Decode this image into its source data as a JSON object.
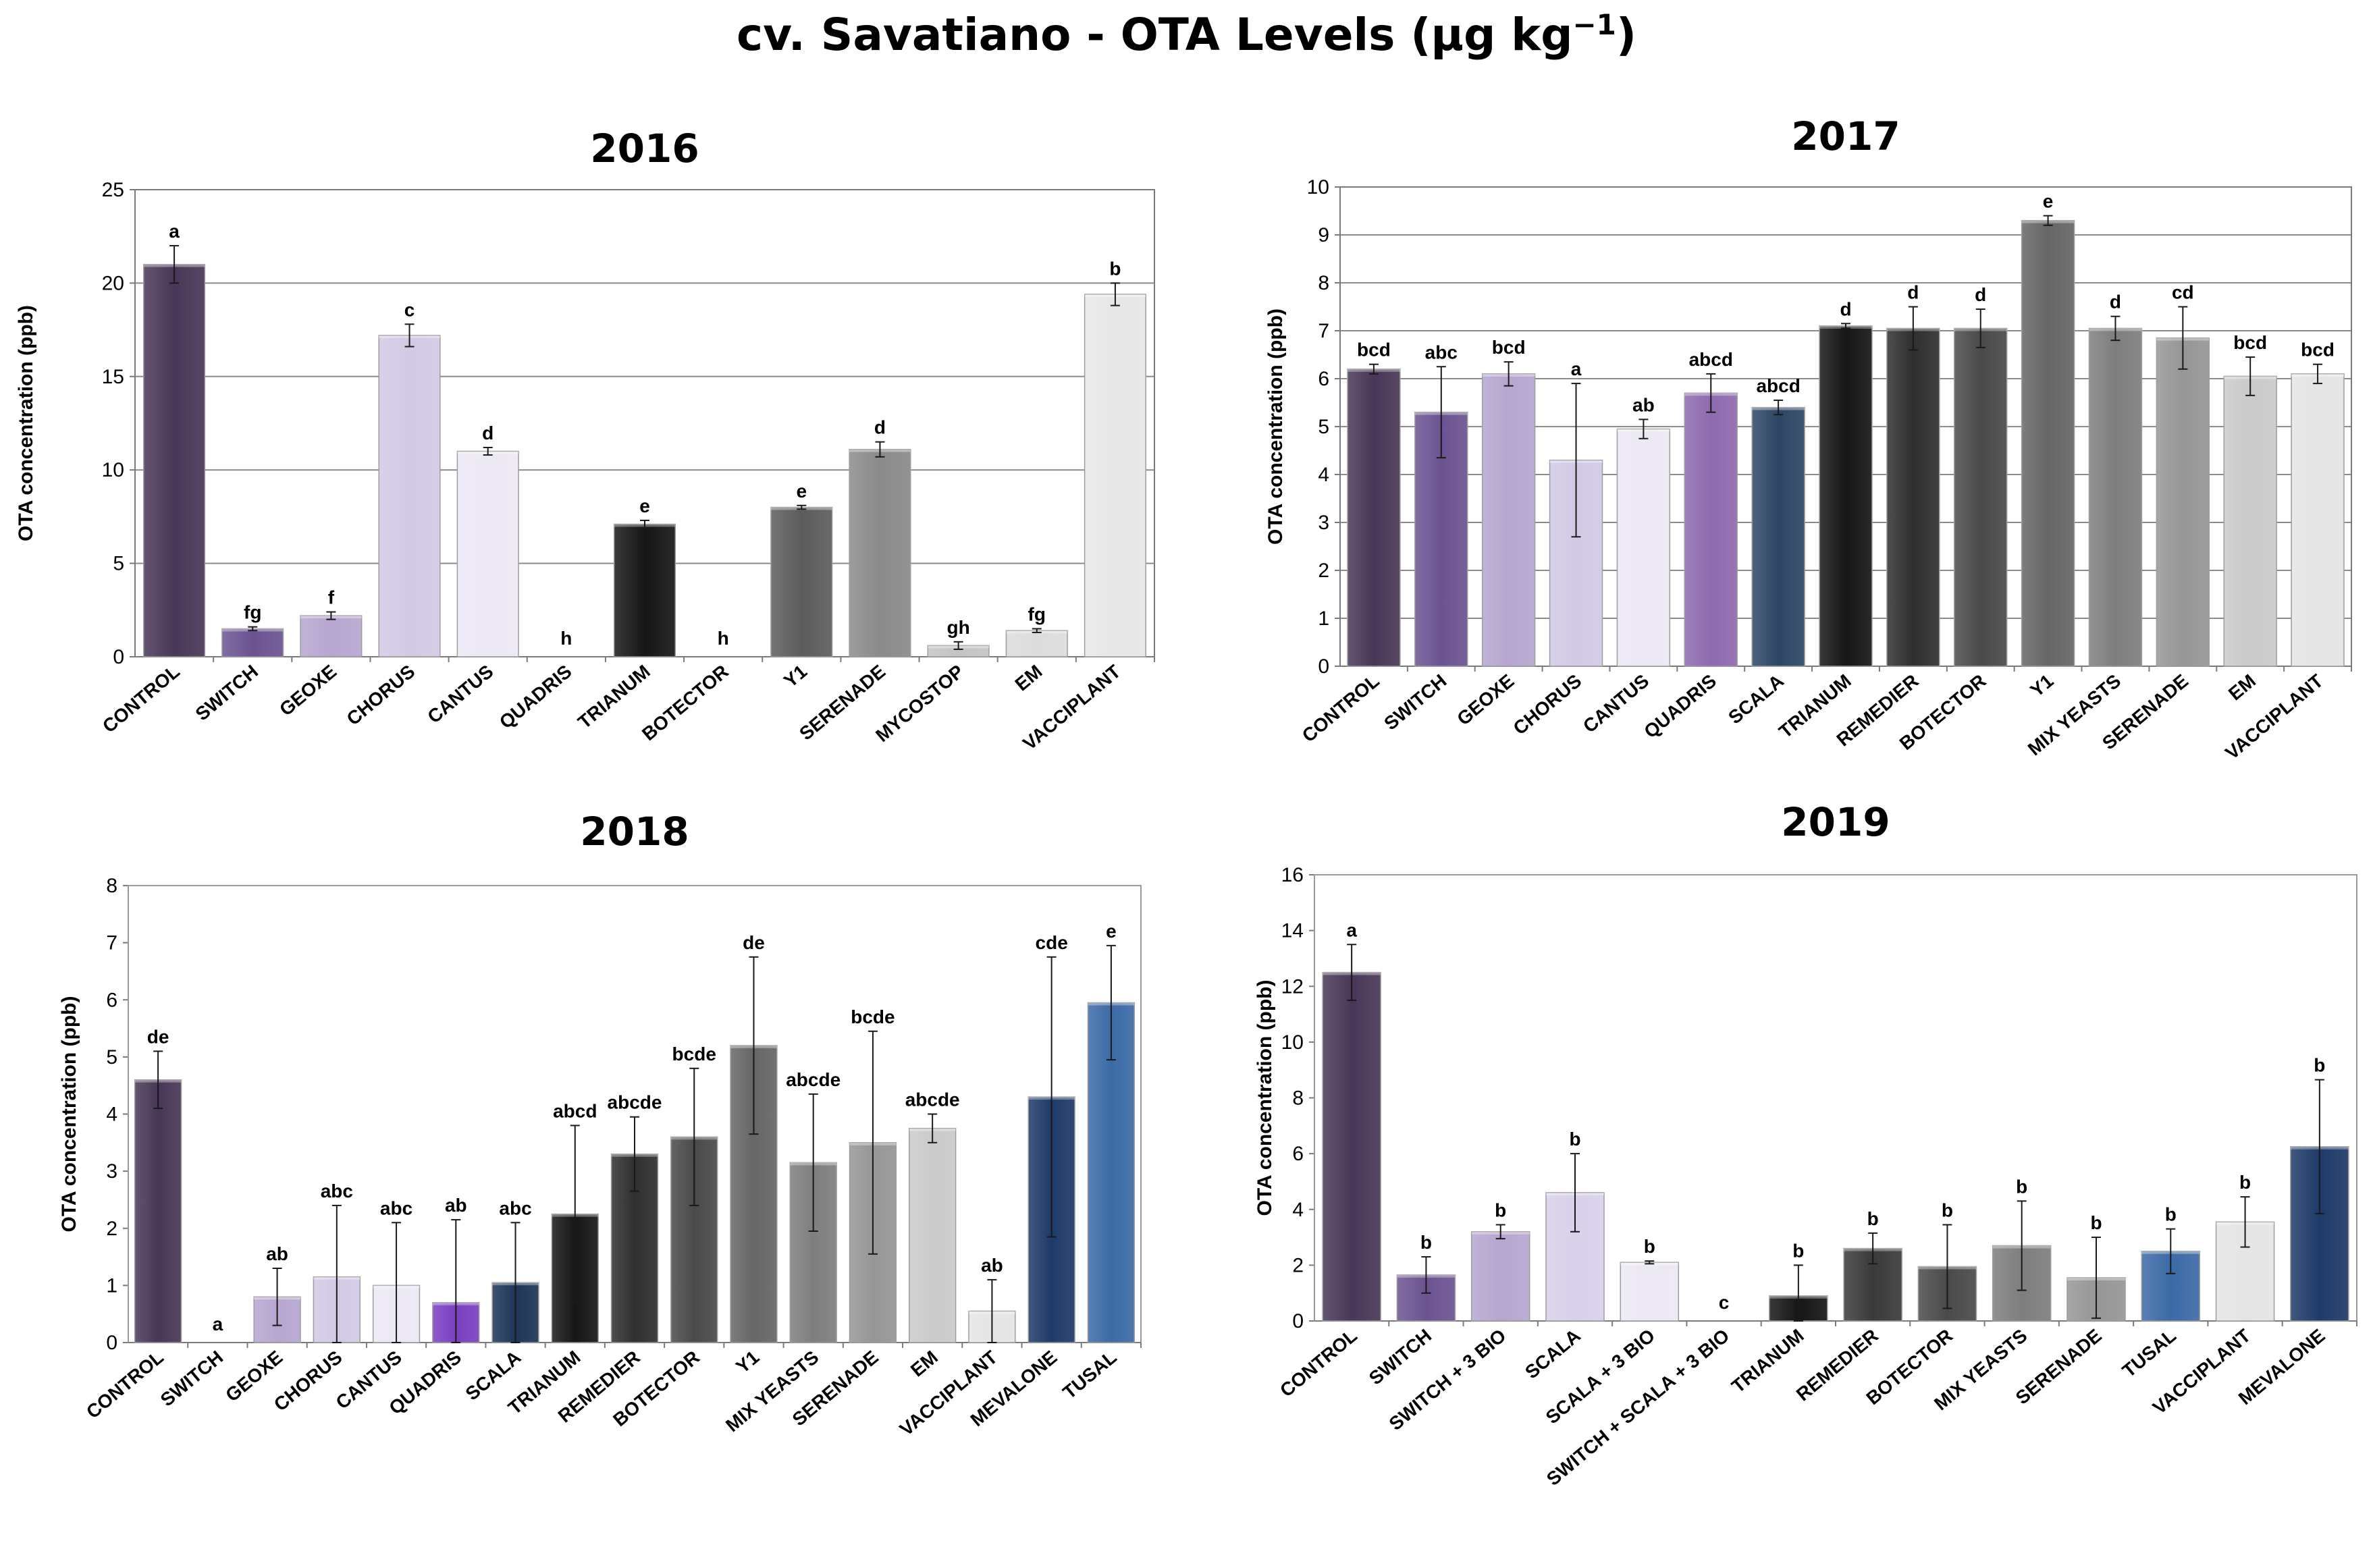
{
  "title_main": "cv. Savatiano - OTA Levels (µg kg",
  "title_exp": "−1",
  "title_close": ")",
  "chart_data": [
    {
      "type": "bar",
      "title": "2016",
      "ylabel": "OTA concentration (ppb)",
      "xlabel": "",
      "ylim": [
        0,
        25
      ],
      "yticks": [
        0,
        5,
        10,
        15,
        20,
        25
      ],
      "grid": true,
      "categories": [
        "CONTROL",
        "SWITCH",
        "GEOXE",
        "CHORUS",
        "CANTUS",
        "QUADRIS",
        "TRIANUM",
        "BOTECTOR",
        "Y1",
        "SERENADE",
        "MYCOSTOP",
        "EM",
        "VACCIPLANT"
      ],
      "values": [
        21.0,
        1.5,
        2.2,
        17.2,
        11.0,
        0,
        7.1,
        0,
        8.0,
        11.1,
        0.6,
        1.4,
        19.4
      ],
      "errors": [
        1.0,
        0.1,
        0.2,
        0.6,
        0.2,
        0,
        0.2,
        0,
        0.1,
        0.4,
        0.2,
        0.1,
        0.6
      ],
      "letters": [
        "a",
        "fg",
        "f",
        "c",
        "d",
        "h",
        "e",
        "h",
        "e",
        "d",
        "gh",
        "fg",
        "b"
      ],
      "colors": [
        "#483757",
        "#6b5391",
        "#b6a6d0",
        "#d2c9e4",
        "#ece8f4",
        "#ffffff",
        "#161616",
        "#ffffff",
        "#5c5c5c",
        "#8a8a8a",
        "#c4c4c4",
        "#dcdcdc",
        "#e7e7e7"
      ]
    },
    {
      "type": "bar",
      "title": "2017",
      "ylabel": "OTA concentration (ppb)",
      "xlabel": "",
      "ylim": [
        0,
        10
      ],
      "yticks": [
        0,
        1,
        2,
        3,
        4,
        5,
        6,
        7,
        8,
        9,
        10
      ],
      "grid": true,
      "categories": [
        "CONTROL",
        "SWITCH",
        "GEOXE",
        "CHORUS",
        "CANTUS",
        "QUADRIS",
        "SCALA",
        "TRIANUM",
        "REMEDIER",
        "BOTECTOR",
        "Y1",
        "MIX YEASTS",
        "SERENADE",
        "EM",
        "VACCIPLANT"
      ],
      "values": [
        6.2,
        5.3,
        6.1,
        4.3,
        4.95,
        5.7,
        5.4,
        7.1,
        7.05,
        7.05,
        9.3,
        7.05,
        6.85,
        6.05,
        6.1
      ],
      "errors": [
        0.1,
        0.95,
        0.25,
        1.6,
        0.2,
        0.4,
        0.15,
        0.05,
        0.45,
        0.4,
        0.1,
        0.25,
        0.65,
        0.4,
        0.2
      ],
      "letters": [
        "bcd",
        "abc",
        "bcd",
        "a",
        "ab",
        "abcd",
        "abcd",
        "d",
        "d",
        "d",
        "e",
        "d",
        "cd",
        "bcd",
        "bcd"
      ],
      "colors": [
        "#483757",
        "#6b5391",
        "#b6a6d0",
        "#d2c9e4",
        "#ece8f4",
        "#8e6aaf",
        "#2d4665",
        "#161616",
        "#2f2f2f",
        "#4a4a4a",
        "#666666",
        "#7e7e7e",
        "#969696",
        "#cacaca",
        "#e5e5e5"
      ]
    },
    {
      "type": "bar",
      "title": "2018",
      "ylabel": "OTA concentration (ppb)",
      "xlabel": "",
      "ylim": [
        0,
        8
      ],
      "yticks": [
        0,
        1,
        2,
        3,
        4,
        5,
        6,
        7,
        8
      ],
      "grid": false,
      "categories": [
        "CONTROL",
        "SWITCH",
        "GEOXE",
        "CHORUS",
        "CANTUS",
        "QUADRIS",
        "SCALA",
        "TRIANUM",
        "REMEDIER",
        "BOTECTOR",
        "Y1",
        "MIX YEASTS",
        "SERENADE",
        "EM",
        "VACCIPLANT",
        "MEVALONE",
        "TUSAL"
      ],
      "values": [
        4.6,
        0,
        0.8,
        1.15,
        1.0,
        0.7,
        1.05,
        2.25,
        3.3,
        3.6,
        5.2,
        3.15,
        3.5,
        3.75,
        0.55,
        4.3,
        5.95
      ],
      "errors": [
        0.5,
        0,
        0.5,
        1.25,
        1.1,
        1.45,
        1.05,
        1.55,
        0.65,
        1.2,
        1.55,
        1.2,
        1.95,
        0.25,
        0.55,
        2.45,
        1.0
      ],
      "letters": [
        "de",
        "a",
        "ab",
        "abc",
        "abc",
        "ab",
        "abc",
        "abcd",
        "abcde",
        "bcde",
        "de",
        "abcde",
        "bcde",
        "abcde",
        "ab",
        "cde",
        "e"
      ],
      "colors": [
        "#483757",
        "#6b5391",
        "#b6a6d0",
        "#d2c9e4",
        "#ece8f4",
        "#7a3fbf",
        "#1d3557",
        "#161616",
        "#2f2f2f",
        "#4a4a4a",
        "#666666",
        "#7e7e7e",
        "#969696",
        "#cacaca",
        "#e5e5e5",
        "#1e3a68",
        "#3c6aa6"
      ]
    },
    {
      "type": "bar",
      "title": "2019",
      "ylabel": "OTA concentration (ppb)",
      "xlabel": "",
      "ylim": [
        0,
        16
      ],
      "yticks": [
        0,
        2,
        4,
        6,
        8,
        10,
        12,
        14,
        16
      ],
      "grid": false,
      "categories": [
        "CONTROL",
        "SWITCH",
        "SWITCH + 3 BIO",
        "SCALA",
        "SCALA + 3 BIO",
        "SWITCH + SCALA + 3 BIO",
        "TRIANUM",
        "REMEDIER",
        "BOTECTOR",
        "MIX YEASTS",
        "SERENADE",
        "TUSAL",
        "VACCIPLANT",
        "MEVALONE"
      ],
      "values": [
        12.5,
        1.65,
        3.2,
        4.6,
        2.1,
        0,
        0.9,
        2.6,
        1.95,
        2.7,
        1.55,
        2.5,
        3.55,
        6.25
      ],
      "errors": [
        1.0,
        0.65,
        0.25,
        1.4,
        0.05,
        0,
        1.1,
        0.55,
        1.5,
        1.6,
        1.45,
        0.8,
        0.9,
        2.4
      ],
      "letters": [
        "a",
        "b",
        "b",
        "b",
        "b",
        "c",
        "b",
        "b",
        "b",
        "b",
        "b",
        "b",
        "b",
        "b"
      ],
      "colors": [
        "#483757",
        "#6b5391",
        "#b6a6d0",
        "#d9d0ea",
        "#ece8f4",
        "#ffffff",
        "#161616",
        "#3a3a3a",
        "#4a4a4a",
        "#7e7e7e",
        "#969696",
        "#3c6aa6",
        "#e5e5e5",
        "#1e3a68"
      ]
    }
  ]
}
